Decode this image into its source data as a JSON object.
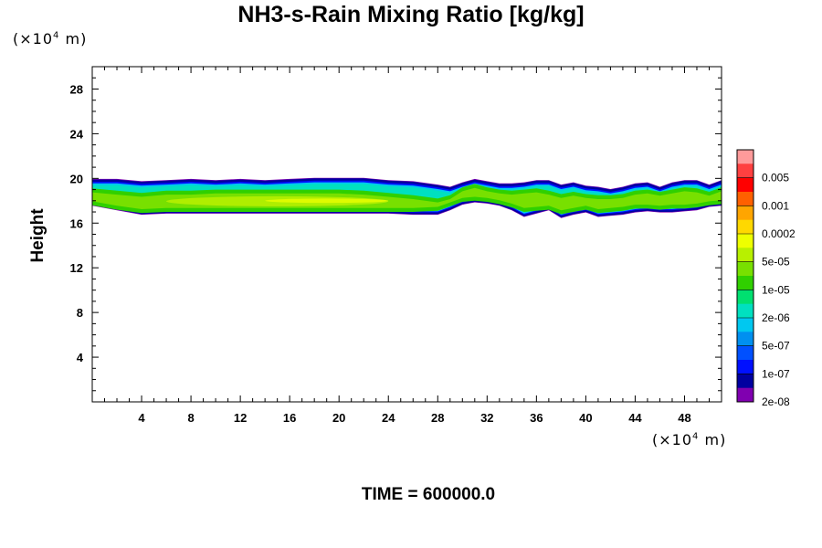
{
  "chart_data": {
    "type": "heatmap",
    "title": "NH3-s-Rain Mixing Ratio [kg/kg]",
    "xlabel": "",
    "ylabel": "Height",
    "x_unit": "(×10⁴ m)",
    "y_unit": "(×10⁴ m)",
    "footer": "TIME = 600000.0",
    "xlim": [
      0,
      51
    ],
    "ylim": [
      0,
      30
    ],
    "x_ticks": [
      4,
      8,
      12,
      16,
      20,
      24,
      28,
      32,
      36,
      40,
      44,
      48
    ],
    "y_ticks": [
      4,
      8,
      12,
      16,
      20,
      24,
      28
    ],
    "legend": {
      "placement": "right",
      "labels": [
        "0.005",
        "0.001",
        "0.0002",
        "5e-05",
        "1e-05",
        "2e-06",
        "5e-07",
        "1e-07",
        "2e-08"
      ],
      "colors": [
        "#ff9a9a",
        "#ff4040",
        "#ff0000",
        "#ff6000",
        "#ffa500",
        "#ffd800",
        "#eeff00",
        "#b8f000",
        "#78e000",
        "#30d000",
        "#00e070",
        "#00e0c0",
        "#00c8f0",
        "#0090f0",
        "#0050ff",
        "#0010ff",
        "#0000a0",
        "#8000b0"
      ]
    },
    "band": {
      "x": [
        0,
        2,
        4,
        6,
        8,
        10,
        12,
        14,
        16,
        18,
        20,
        22,
        24,
        26,
        28,
        29,
        30,
        31,
        32,
        33,
        34,
        35,
        36,
        37,
        38,
        39,
        40,
        41,
        42,
        43,
        44,
        45,
        46,
        47,
        48,
        49,
        50,
        51
      ],
      "top": [
        19.9,
        19.9,
        19.7,
        19.8,
        19.9,
        19.8,
        19.9,
        19.8,
        19.9,
        20.0,
        20.0,
        20.0,
        19.8,
        19.7,
        19.4,
        19.2,
        19.6,
        19.9,
        19.7,
        19.5,
        19.5,
        19.6,
        19.8,
        19.8,
        19.4,
        19.6,
        19.3,
        19.2,
        19.0,
        19.2,
        19.5,
        19.6,
        19.2,
        19.6,
        19.8,
        19.8,
        19.4,
        19.8
      ],
      "bottom": [
        17.6,
        17.2,
        16.8,
        16.9,
        16.9,
        16.9,
        16.9,
        16.9,
        16.9,
        16.9,
        16.9,
        16.9,
        16.9,
        16.8,
        16.8,
        17.2,
        17.7,
        17.9,
        17.8,
        17.6,
        17.2,
        16.6,
        16.9,
        17.2,
        16.5,
        16.8,
        17.0,
        16.6,
        16.7,
        16.8,
        17.0,
        17.1,
        17.0,
        17.0,
        17.1,
        17.2,
        17.5,
        17.6
      ],
      "core_top": [
        18.8,
        18.6,
        18.4,
        18.6,
        18.6,
        18.7,
        18.7,
        18.7,
        18.7,
        18.7,
        18.7,
        18.6,
        18.4,
        18.2,
        17.9,
        18.2,
        18.9,
        19.2,
        18.9,
        18.7,
        18.6,
        18.7,
        18.8,
        18.6,
        18.3,
        18.5,
        18.3,
        18.2,
        18.2,
        18.3,
        18.6,
        18.7,
        18.5,
        18.7,
        18.9,
        18.8,
        18.5,
        18.9
      ],
      "core_bottom": [
        17.9,
        17.5,
        17.2,
        17.3,
        17.3,
        17.3,
        17.3,
        17.3,
        17.3,
        17.3,
        17.3,
        17.3,
        17.3,
        17.3,
        17.4,
        17.8,
        18.2,
        18.3,
        18.2,
        18.0,
        17.7,
        17.3,
        17.4,
        17.5,
        17.1,
        17.3,
        17.5,
        17.2,
        17.3,
        17.4,
        17.6,
        17.6,
        17.5,
        17.6,
        17.6,
        17.7,
        17.9,
        18.0
      ],
      "peak": {
        "x_range": [
          6,
          24
        ],
        "y_range": [
          17.5,
          18.4
        ],
        "level": "5e-05"
      }
    }
  }
}
